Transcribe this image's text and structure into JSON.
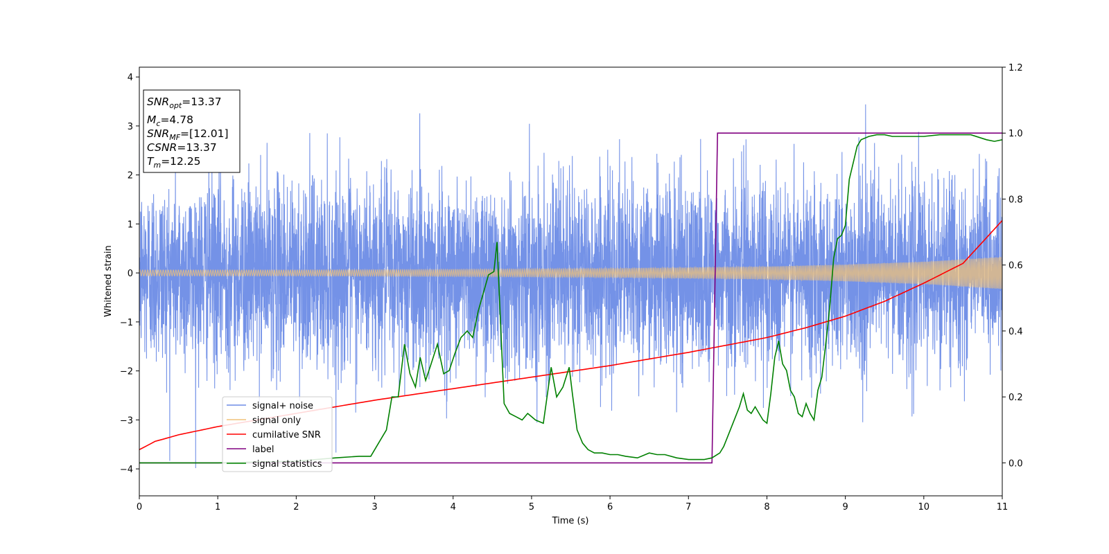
{
  "chart_data": {
    "type": "line",
    "xlabel": "Time (s)",
    "ylabel": "Whitened strain",
    "xlim": [
      0,
      11
    ],
    "ylim": [
      -4.55,
      4.2
    ],
    "ylim_right": [
      -0.1,
      1.2
    ],
    "x_ticks": [
      "0",
      "1",
      "2",
      "3",
      "4",
      "5",
      "6",
      "7",
      "8",
      "9",
      "10",
      "11"
    ],
    "y_ticks": [
      "4",
      "3",
      "2",
      "1",
      "0",
      "−1",
      "−2",
      "−3",
      "−4"
    ],
    "y_ticks_right": [
      "1.2",
      "1.0",
      "0.8",
      "0.6",
      "0.4",
      "0.2",
      "0.0"
    ],
    "grid": false,
    "legend_position": "lower-left",
    "annotation": {
      "snr_opt": "=13.37",
      "mc": "=4.78",
      "snr_mf": "=[12.01]",
      "csnr": "=13.37",
      "tm": "=12.25"
    },
    "series": [
      {
        "name": "signal+ noise",
        "color": "#6d8ce6",
        "axis": "left",
        "description": "whitened noisy strain, approx. standard normal noise, range about -4.2 to 3.85"
      },
      {
        "name": "signal only",
        "color": "#f0c27a",
        "axis": "left",
        "amplitude_envelope": {
          "x": [
            0,
            2,
            4,
            6,
            8,
            9,
            10,
            11
          ],
          "y": [
            0.06,
            0.06,
            0.07,
            0.09,
            0.13,
            0.17,
            0.23,
            0.33
          ]
        }
      },
      {
        "name": "cumilative SNR",
        "color": "#ff0000",
        "axis": "right",
        "x": [
          0,
          0.2,
          0.5,
          1,
          2,
          3,
          4,
          5,
          6,
          7,
          8,
          8.5,
          9,
          9.5,
          10,
          10.5,
          11
        ],
        "y": [
          0.04,
          0.065,
          0.085,
          0.11,
          0.15,
          0.19,
          0.225,
          0.26,
          0.295,
          0.335,
          0.38,
          0.41,
          0.445,
          0.49,
          0.545,
          0.605,
          0.735
        ]
      },
      {
        "name": "label",
        "color": "#800080",
        "axis": "right",
        "x": [
          0,
          7.3,
          7.37,
          11
        ],
        "y": [
          0,
          0,
          1,
          1
        ]
      },
      {
        "name": "signal statistics",
        "color": "#008000",
        "axis": "right",
        "x": [
          0,
          1,
          2,
          2.5,
          2.8,
          2.95,
          3.05,
          3.15,
          3.22,
          3.3,
          3.38,
          3.45,
          3.52,
          3.58,
          3.65,
          3.72,
          3.8,
          3.88,
          3.95,
          4.02,
          4.1,
          4.18,
          4.25,
          4.32,
          4.38,
          4.45,
          4.52,
          4.56,
          4.6,
          4.65,
          4.72,
          4.8,
          4.88,
          4.95,
          5.05,
          5.15,
          5.25,
          5.32,
          5.4,
          5.48,
          5.52,
          5.58,
          5.65,
          5.72,
          5.8,
          5.9,
          6.0,
          6.1,
          6.2,
          6.35,
          6.5,
          6.6,
          6.7,
          6.85,
          7.0,
          7.2,
          7.3,
          7.4,
          7.45,
          7.5,
          7.6,
          7.65,
          7.7,
          7.75,
          7.8,
          7.85,
          7.9,
          7.95,
          8.0,
          8.05,
          8.1,
          8.15,
          8.2,
          8.25,
          8.3,
          8.35,
          8.4,
          8.45,
          8.5,
          8.55,
          8.6,
          8.65,
          8.7,
          8.75,
          8.8,
          8.85,
          8.9,
          8.95,
          9.0,
          9.05,
          9.1,
          9.15,
          9.2,
          9.3,
          9.4,
          9.5,
          9.6,
          9.8,
          10.0,
          10.2,
          10.4,
          10.6,
          10.8,
          10.9,
          11.0
        ],
        "y": [
          0,
          0,
          0.005,
          0.015,
          0.02,
          0.02,
          0.06,
          0.1,
          0.2,
          0.2,
          0.36,
          0.27,
          0.23,
          0.32,
          0.25,
          0.3,
          0.36,
          0.27,
          0.28,
          0.33,
          0.38,
          0.4,
          0.38,
          0.46,
          0.51,
          0.57,
          0.58,
          0.67,
          0.45,
          0.18,
          0.15,
          0.14,
          0.13,
          0.15,
          0.13,
          0.12,
          0.29,
          0.2,
          0.23,
          0.29,
          0.21,
          0.1,
          0.06,
          0.04,
          0.03,
          0.03,
          0.025,
          0.025,
          0.02,
          0.015,
          0.03,
          0.025,
          0.025,
          0.015,
          0.01,
          0.01,
          0.015,
          0.03,
          0.05,
          0.08,
          0.14,
          0.17,
          0.21,
          0.16,
          0.15,
          0.17,
          0.15,
          0.13,
          0.12,
          0.21,
          0.32,
          0.37,
          0.3,
          0.28,
          0.22,
          0.2,
          0.15,
          0.14,
          0.18,
          0.15,
          0.13,
          0.22,
          0.26,
          0.36,
          0.47,
          0.62,
          0.68,
          0.69,
          0.72,
          0.86,
          0.91,
          0.96,
          0.98,
          0.99,
          0.995,
          0.995,
          0.99,
          0.99,
          0.99,
          0.995,
          0.995,
          0.995,
          0.98,
          0.975,
          0.98
        ]
      }
    ]
  }
}
